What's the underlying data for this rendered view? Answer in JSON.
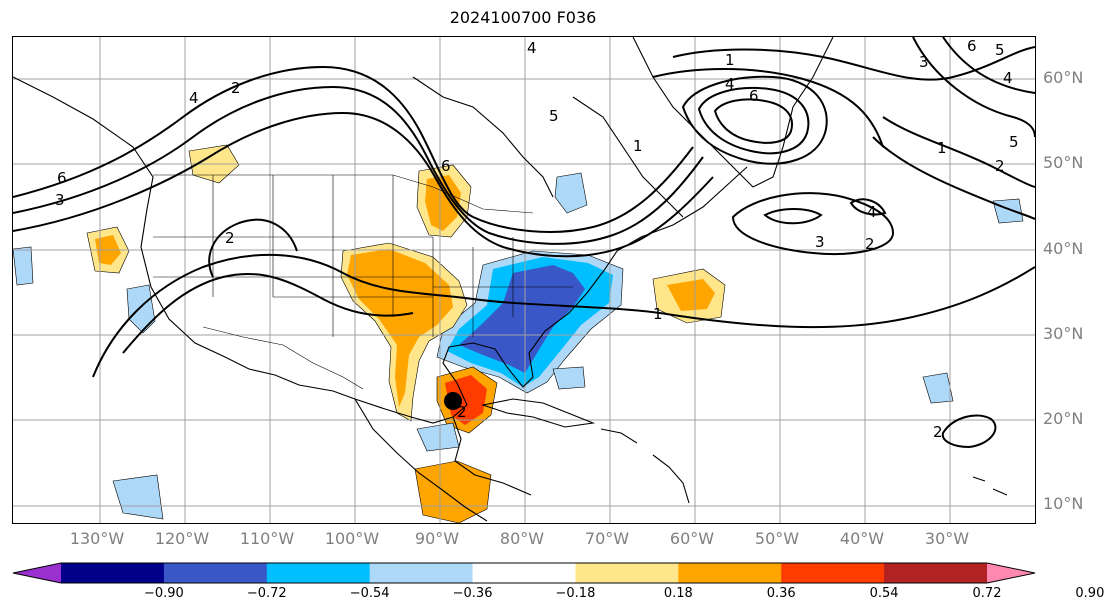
{
  "title": "2024100700 F036",
  "lat_labels": [
    "60°N",
    "50°N",
    "40°N",
    "30°N",
    "20°N",
    "10°N"
  ],
  "lon_labels": [
    "130°W",
    "120°W",
    "110°W",
    "100°W",
    "90°W",
    "80°W",
    "70°W",
    "60°W",
    "50°W",
    "40°W",
    "30°W"
  ],
  "colorbar": {
    "ticks": [
      "−0.90",
      "−0.72",
      "−0.54",
      "−0.36",
      "−0.18",
      "0.18",
      "0.36",
      "0.54",
      "0.72",
      "0.90"
    ],
    "colors": [
      "#9b30d0",
      "#00008b",
      "#3a57c8",
      "#00bfff",
      "#add8f7",
      "#ffffff",
      "#ffe68a",
      "#ffa500",
      "#ff3c00",
      "#b22222",
      "#ff88b0"
    ]
  },
  "contour_labels": [
    "1",
    "4",
    "6",
    "6",
    "5",
    "4",
    "5",
    "1",
    "2",
    "3",
    "4",
    "2",
    "6",
    "3",
    "4",
    "2",
    "6",
    "5",
    "4",
    "3",
    "2",
    "2",
    "1",
    "1",
    "2"
  ]
}
